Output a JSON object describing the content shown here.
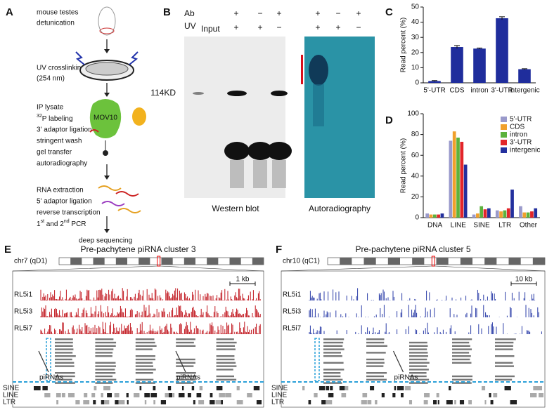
{
  "panel_labels": [
    "A",
    "B",
    "C",
    "D",
    "E",
    "F"
  ],
  "panel_a": {
    "mouse": [
      "mouse testes",
      "detunication"
    ],
    "crosslink": [
      "UV crosslinking",
      "(254 nm)"
    ],
    "ip": "IP lysate",
    "labeling": {
      "sup": "32",
      "text": "P labeling"
    },
    "ip_steps": [
      "3' adaptor ligation",
      "stringent wash",
      "gel transfer",
      "autoradiography"
    ],
    "protein": "MOV10",
    "rna_steps": [
      "RNA extraction",
      "5' adaptor ligation",
      "reverse transcription"
    ],
    "pcr": [
      "1",
      "st",
      " and 2",
      "nd",
      " PCR"
    ],
    "final": "deep sequencing"
  },
  "panel_b": {
    "ab_label": "Ab",
    "uv_label": "UV",
    "input_label": "Input",
    "western_ab": [
      "+",
      "−",
      "+"
    ],
    "western_uv": [
      "+",
      "+",
      "−"
    ],
    "autorad_ab": [
      "+",
      "−",
      "+"
    ],
    "autorad_uv": [
      "+",
      "+",
      "−"
    ],
    "size_marker": "114KD",
    "western_caption": "Western blot",
    "autorad_caption": "Autoradiography"
  },
  "panel_e": {
    "title": "Pre-pachytene piRNA cluster 3",
    "chrom": "chr7 (qD1)",
    "scale": "1 kb",
    "tracks": [
      "RL5i1",
      "RL5i3",
      "RL5i7"
    ],
    "pirna_labels": [
      "piRNAs",
      "piRNAs"
    ],
    "repeats": [
      "SINE",
      "LINE",
      "LTR"
    ]
  },
  "panel_f": {
    "title": "Pre-pachytene piRNA cluster 5",
    "chrom": "chr10 (qC1)",
    "scale": "10 kb",
    "tracks": [
      "RL5i1",
      "RL5i3",
      "RL5i7"
    ],
    "pirna_labels": [
      "piRNAs"
    ],
    "repeats": [
      "SINE",
      "LINE",
      "LTR"
    ]
  },
  "chart_data": [
    {
      "type": "bar",
      "ylabel": "Read percent (%)",
      "categories": [
        "5'-UTR",
        "CDS",
        "intron",
        "3'-UTR",
        "intergenic"
      ],
      "values": [
        1.2,
        23.6,
        22.6,
        42.6,
        9.0
      ],
      "errors": [
        0.3,
        1.0,
        0.4,
        1.0,
        0.3
      ],
      "color": "#1f2d9c",
      "ylim": [
        0,
        50
      ],
      "yticks": [
        0,
        10,
        20,
        30,
        40,
        50
      ]
    },
    {
      "type": "grouped-bar",
      "ylabel": "Read percent (%)",
      "categories": [
        "DNA",
        "LINE",
        "SINE",
        "LTR",
        "Other"
      ],
      "series": [
        {
          "name": "5'-UTR",
          "color": "#9a9acb",
          "values": [
            4,
            74,
            3,
            7,
            11
          ]
        },
        {
          "name": "CDS",
          "color": "#f0a02c",
          "values": [
            3,
            83,
            4,
            6,
            5
          ]
        },
        {
          "name": "intron",
          "color": "#5cb23c",
          "values": [
            3,
            77,
            11,
            7,
            5
          ]
        },
        {
          "name": "3'-UTR",
          "color": "#e2262a",
          "values": [
            3,
            73,
            8,
            9,
            6
          ]
        },
        {
          "name": "intergenic",
          "color": "#23309e",
          "values": [
            4,
            51,
            9,
            27,
            9
          ]
        }
      ],
      "ylim": [
        0,
        100
      ],
      "yticks": [
        0,
        20,
        40,
        60,
        80,
        100
      ],
      "legend": "top-right"
    }
  ]
}
